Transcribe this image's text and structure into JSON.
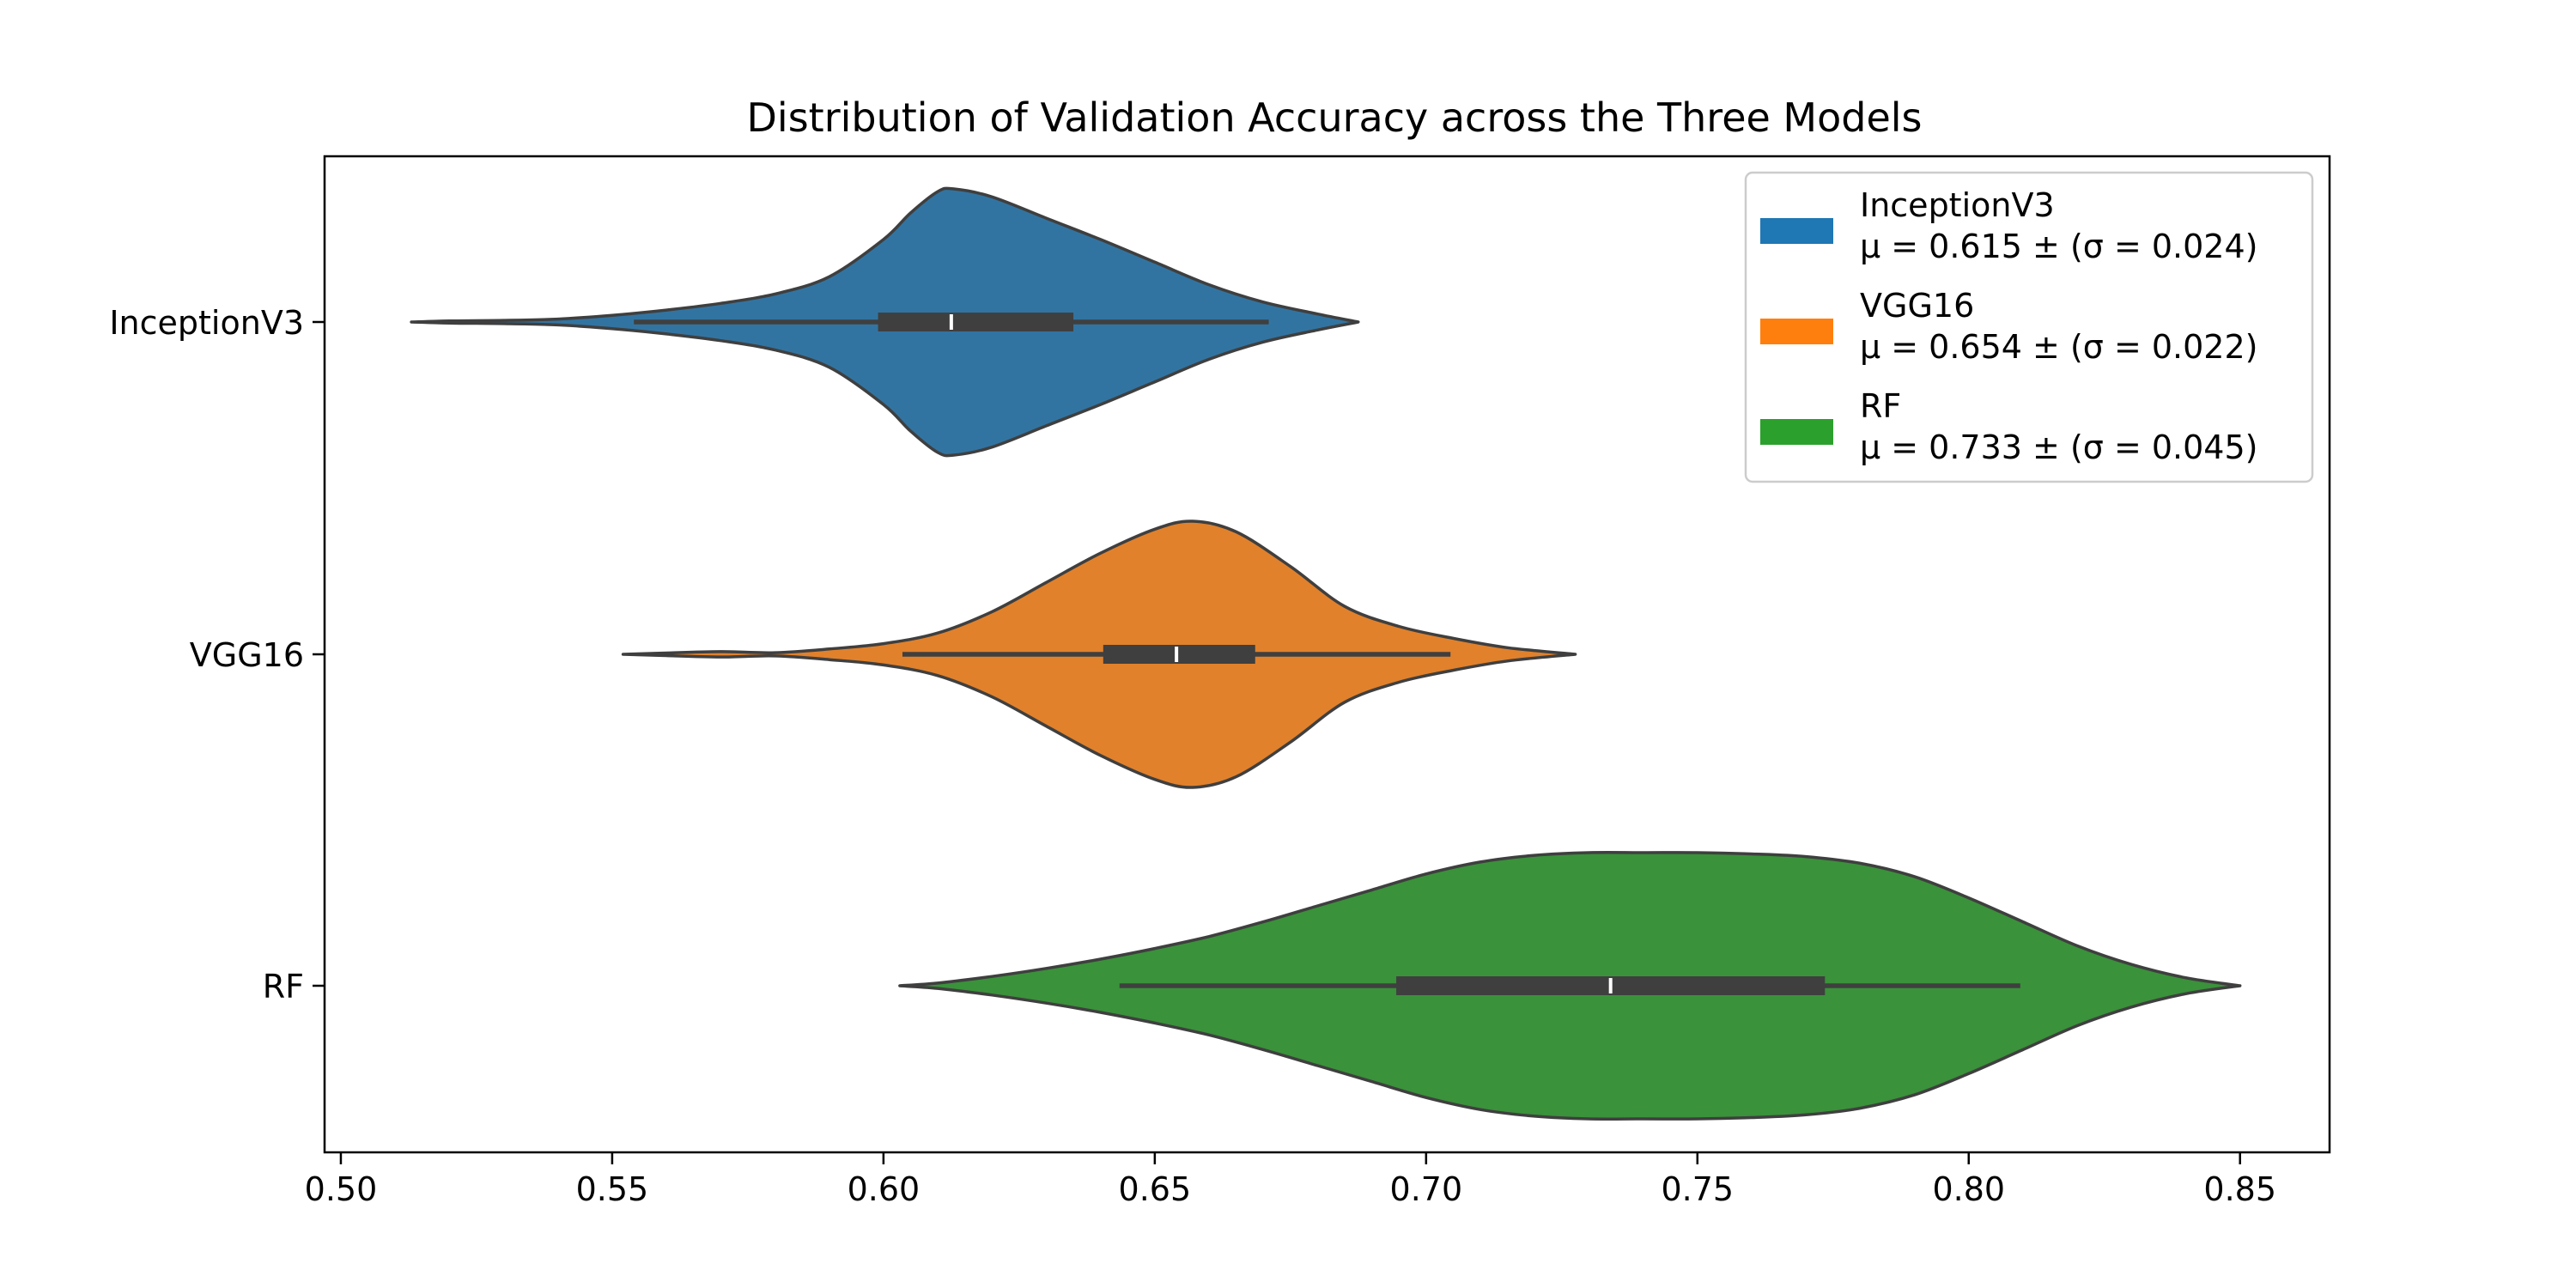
{
  "chart_data": {
    "type": "violin",
    "title": "Distribution of Validation Accuracy across the Three Models",
    "xlabel": "",
    "ylabel": "",
    "orientation": "horizontal",
    "xlim": [
      0.497,
      0.8665
    ],
    "xticks": [
      "0.50",
      "0.55",
      "0.60",
      "0.65",
      "0.70",
      "0.75",
      "0.80",
      "0.85"
    ],
    "categories": [
      "InceptionV3",
      "VGG16",
      "RF"
    ],
    "legend_position": "top-right",
    "series": [
      {
        "name": "InceptionV3",
        "legend_label": "InceptionV3",
        "legend_stat": "μ = 0.615 ± (σ = 0.024)",
        "color": "#3274a1",
        "legend_color": "#1f77b4",
        "range": [
          0.513,
          0.6875
        ],
        "whiskers": [
          0.554,
          0.671
        ],
        "q1": 0.599,
        "median": 0.6125,
        "q3": 0.635,
        "density": [
          [
            0.513,
            0.0
          ],
          [
            0.52,
            0.008
          ],
          [
            0.53,
            0.012
          ],
          [
            0.54,
            0.022
          ],
          [
            0.55,
            0.05
          ],
          [
            0.56,
            0.09
          ],
          [
            0.57,
            0.14
          ],
          [
            0.58,
            0.21
          ],
          [
            0.59,
            0.34
          ],
          [
            0.6,
            0.62
          ],
          [
            0.605,
            0.82
          ],
          [
            0.61,
            0.98
          ],
          [
            0.613,
            1.0
          ],
          [
            0.62,
            0.94
          ],
          [
            0.63,
            0.78
          ],
          [
            0.64,
            0.62
          ],
          [
            0.65,
            0.45
          ],
          [
            0.66,
            0.28
          ],
          [
            0.67,
            0.15
          ],
          [
            0.68,
            0.06
          ],
          [
            0.6875,
            0.0
          ]
        ]
      },
      {
        "name": "VGG16",
        "legend_label": "VGG16",
        "legend_stat": "μ = 0.654 ± (σ = 0.022)",
        "color": "#e1812c",
        "legend_color": "#ff7f0e",
        "range": [
          0.552,
          0.7275
        ],
        "whiskers": [
          0.6035,
          0.7045
        ],
        "q1": 0.6405,
        "median": 0.654,
        "q3": 0.6685,
        "density": [
          [
            0.552,
            0.0
          ],
          [
            0.56,
            0.01
          ],
          [
            0.57,
            0.02
          ],
          [
            0.58,
            0.012
          ],
          [
            0.59,
            0.04
          ],
          [
            0.6,
            0.08
          ],
          [
            0.61,
            0.16
          ],
          [
            0.62,
            0.32
          ],
          [
            0.63,
            0.54
          ],
          [
            0.64,
            0.76
          ],
          [
            0.65,
            0.94
          ],
          [
            0.657,
            1.0
          ],
          [
            0.665,
            0.92
          ],
          [
            0.675,
            0.66
          ],
          [
            0.685,
            0.36
          ],
          [
            0.695,
            0.21
          ],
          [
            0.705,
            0.12
          ],
          [
            0.715,
            0.05
          ],
          [
            0.7275,
            0.0
          ]
        ]
      },
      {
        "name": "RF",
        "legend_label": "RF",
        "legend_stat": "μ = 0.733 ± (σ = 0.045)",
        "color": "#3a923a",
        "legend_color": "#2ca02c",
        "range": [
          0.603,
          0.85
        ],
        "whiskers": [
          0.6435,
          0.8095
        ],
        "q1": 0.6945,
        "median": 0.734,
        "q3": 0.7735,
        "density": [
          [
            0.603,
            0.0
          ],
          [
            0.61,
            0.02
          ],
          [
            0.62,
            0.07
          ],
          [
            0.63,
            0.13
          ],
          [
            0.64,
            0.2
          ],
          [
            0.65,
            0.28
          ],
          [
            0.66,
            0.37
          ],
          [
            0.67,
            0.48
          ],
          [
            0.68,
            0.6
          ],
          [
            0.69,
            0.72
          ],
          [
            0.7,
            0.84
          ],
          [
            0.71,
            0.93
          ],
          [
            0.72,
            0.98
          ],
          [
            0.73,
            1.0
          ],
          [
            0.74,
            1.0
          ],
          [
            0.75,
            1.0
          ],
          [
            0.76,
            0.99
          ],
          [
            0.77,
            0.97
          ],
          [
            0.78,
            0.92
          ],
          [
            0.79,
            0.82
          ],
          [
            0.8,
            0.66
          ],
          [
            0.81,
            0.48
          ],
          [
            0.82,
            0.3
          ],
          [
            0.83,
            0.16
          ],
          [
            0.84,
            0.06
          ],
          [
            0.85,
            0.0
          ]
        ]
      }
    ]
  }
}
